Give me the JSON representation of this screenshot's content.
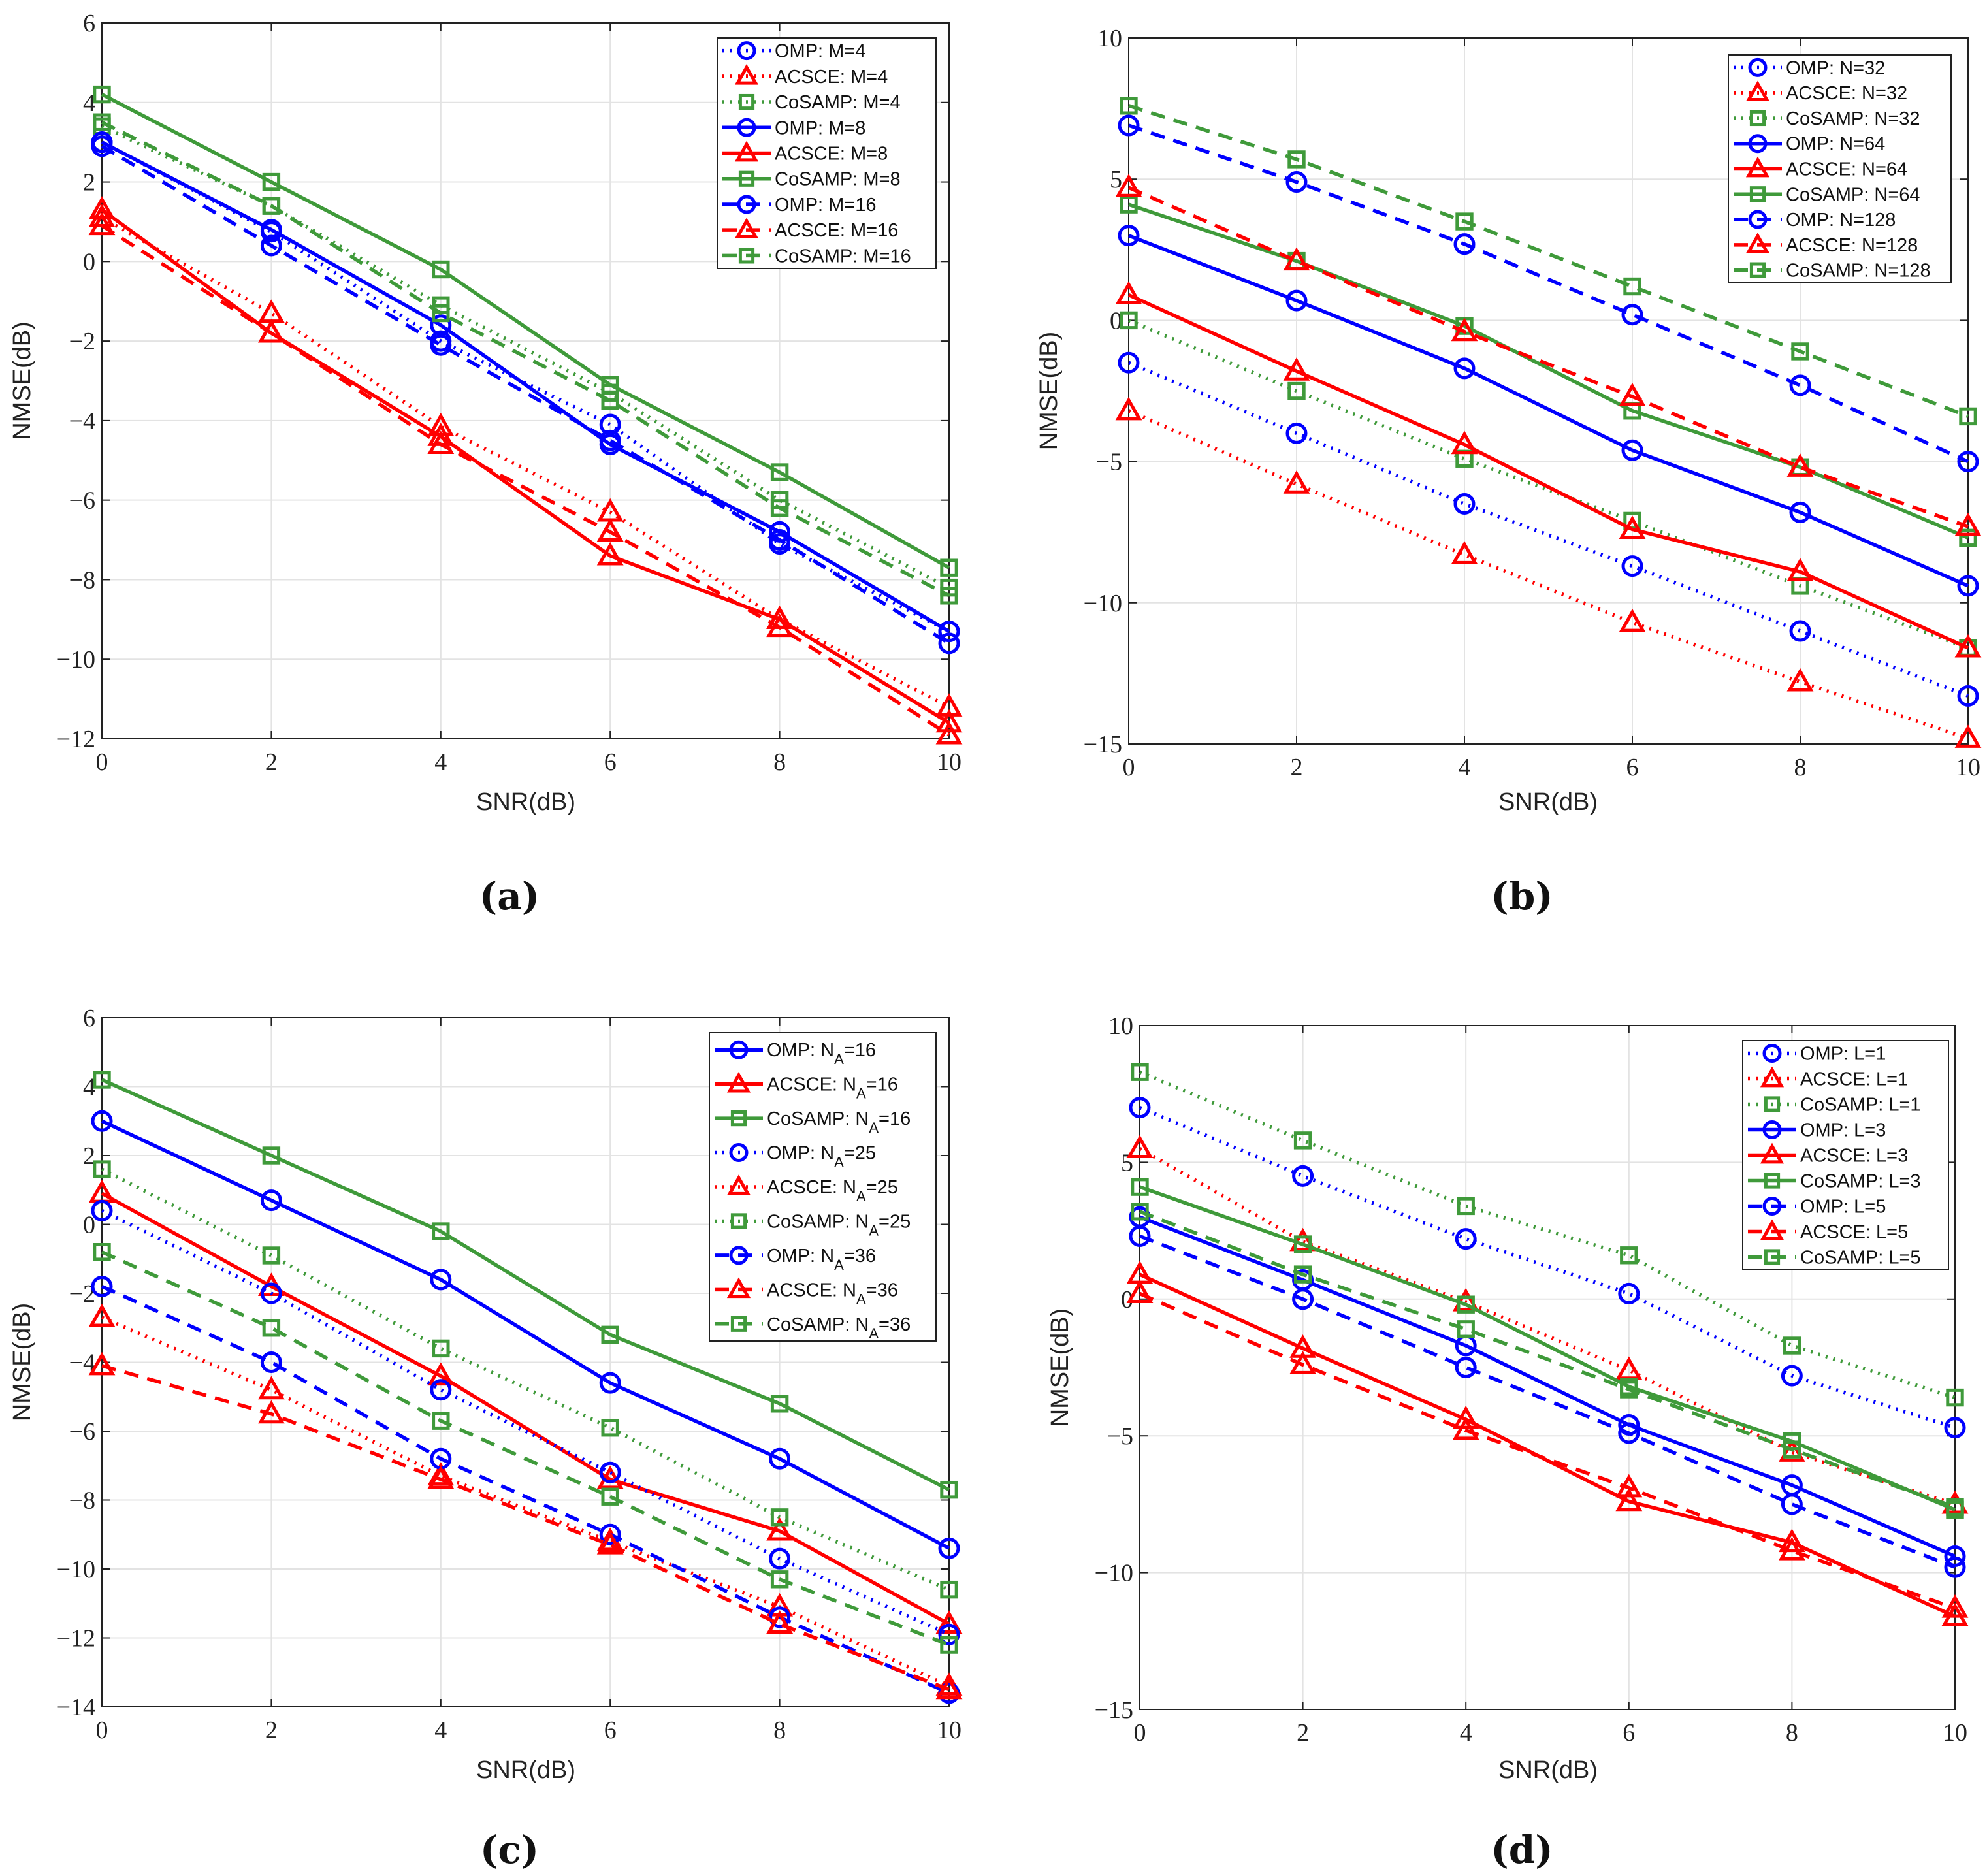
{
  "colors": {
    "OMP": "#0000ff",
    "ACSCE": "#ff0000",
    "CoSAMP": "#3f9a3a",
    "grid": "#e3e3e3"
  },
  "chart_data": [
    {
      "type": "line",
      "caption": "(a)",
      "xlabel": "SNR(dB)",
      "ylabel": "NMSE(dB)",
      "x": [
        0,
        2,
        4,
        6,
        8,
        10
      ],
      "xlim": [
        0,
        10
      ],
      "ylim": [
        -12,
        6
      ],
      "xticks": [
        0,
        2,
        4,
        6,
        8,
        10
      ],
      "yticks": [
        -12,
        -10,
        -8,
        -6,
        -4,
        -2,
        0,
        2,
        4,
        6
      ],
      "grid": true,
      "legend": "top-right",
      "series": [
        {
          "name": "OMP: M=4",
          "algo": "OMP",
          "style": "dotted",
          "values": [
            3.0,
            0.75,
            -2.0,
            -4.1,
            -7.1,
            -9.3
          ]
        },
        {
          "name": "ACSCE: M=4",
          "algo": "ACSCE",
          "style": "dotted",
          "values": [
            1.1,
            -1.3,
            -4.15,
            -6.3,
            -9.0,
            -11.2
          ]
        },
        {
          "name": "CoSAMP: M=4",
          "algo": "CoSAMP",
          "style": "dotted",
          "values": [
            3.4,
            1.4,
            -1.1,
            -3.3,
            -6.0,
            -8.2
          ]
        },
        {
          "name": "OMP: M=8",
          "algo": "OMP",
          "style": "solid",
          "values": [
            3.0,
            0.8,
            -1.6,
            -4.6,
            -6.8,
            -9.3
          ]
        },
        {
          "name": "ACSCE: M=8",
          "algo": "ACSCE",
          "style": "solid",
          "values": [
            1.3,
            -1.8,
            -4.4,
            -7.4,
            -9.0,
            -11.6
          ]
        },
        {
          "name": "CoSAMP: M=8",
          "algo": "CoSAMP",
          "style": "solid",
          "values": [
            4.2,
            2.0,
            -0.2,
            -3.1,
            -5.3,
            -7.7
          ]
        },
        {
          "name": "OMP: M=16",
          "algo": "OMP",
          "style": "dashed",
          "values": [
            2.9,
            0.4,
            -2.1,
            -4.5,
            -7.0,
            -9.6
          ]
        },
        {
          "name": "ACSCE: M=16",
          "algo": "ACSCE",
          "style": "dashed",
          "values": [
            0.9,
            -1.8,
            -4.6,
            -6.8,
            -9.2,
            -11.9
          ]
        },
        {
          "name": "CoSAMP: M=16",
          "algo": "CoSAMP",
          "style": "dashed",
          "values": [
            3.5,
            1.4,
            -1.3,
            -3.5,
            -6.2,
            -8.4
          ]
        }
      ]
    },
    {
      "type": "line",
      "caption": "(b)",
      "xlabel": "SNR(dB)",
      "ylabel": "NMSE(dB)",
      "x": [
        0,
        2,
        4,
        6,
        8,
        10
      ],
      "xlim": [
        0,
        10
      ],
      "ylim": [
        -15,
        10
      ],
      "xticks": [
        0,
        2,
        4,
        6,
        8,
        10
      ],
      "yticks": [
        -15,
        -10,
        -5,
        0,
        5,
        10
      ],
      "grid": true,
      "legend": "top-right",
      "series": [
        {
          "name": "OMP: N=32",
          "algo": "OMP",
          "style": "dotted",
          "values": [
            -1.5,
            -4.0,
            -6.5,
            -8.7,
            -11.0,
            -13.3
          ]
        },
        {
          "name": "ACSCE: N=32",
          "algo": "ACSCE",
          "style": "dotted",
          "values": [
            -3.2,
            -5.8,
            -8.3,
            -10.7,
            -12.8,
            -14.8
          ]
        },
        {
          "name": "CoSAMP: N=32",
          "algo": "CoSAMP",
          "style": "dotted",
          "values": [
            0.0,
            -2.5,
            -4.9,
            -7.1,
            -9.4,
            -11.6
          ]
        },
        {
          "name": "OMP: N=64",
          "algo": "OMP",
          "style": "solid",
          "values": [
            3.0,
            0.7,
            -1.7,
            -4.6,
            -6.8,
            -9.4
          ]
        },
        {
          "name": "ACSCE: N=64",
          "algo": "ACSCE",
          "style": "solid",
          "values": [
            0.9,
            -1.8,
            -4.4,
            -7.4,
            -8.9,
            -11.6
          ]
        },
        {
          "name": "CoSAMP: N=64",
          "algo": "CoSAMP",
          "style": "solid",
          "values": [
            4.1,
            2.1,
            -0.2,
            -3.2,
            -5.2,
            -7.7
          ]
        },
        {
          "name": "OMP: N=128",
          "algo": "OMP",
          "style": "dashed",
          "values": [
            6.9,
            4.9,
            2.7,
            0.2,
            -2.3,
            -5.0
          ]
        },
        {
          "name": "ACSCE: N=128",
          "algo": "ACSCE",
          "style": "dashed",
          "values": [
            4.7,
            2.1,
            -0.4,
            -2.7,
            -5.2,
            -7.3
          ]
        },
        {
          "name": "CoSAMP: N=128",
          "algo": "CoSAMP",
          "style": "dashed",
          "values": [
            7.6,
            5.7,
            3.5,
            1.2,
            -1.1,
            -3.4
          ]
        }
      ]
    },
    {
      "type": "line",
      "caption": "(c)",
      "xlabel": "SNR(dB)",
      "ylabel": "NMSE(dB)",
      "x": [
        0,
        2,
        4,
        6,
        8,
        10
      ],
      "xlim": [
        0,
        10
      ],
      "ylim": [
        -14,
        6
      ],
      "xticks": [
        0,
        2,
        4,
        6,
        8,
        10
      ],
      "yticks": [
        -14,
        -12,
        -10,
        -8,
        -6,
        -4,
        -2,
        0,
        2,
        4,
        6
      ],
      "grid": true,
      "legend": "top-right",
      "series": [
        {
          "name": "OMP: N_A=16",
          "algo": "OMP",
          "style": "solid",
          "values": [
            3.0,
            0.7,
            -1.6,
            -4.6,
            -6.8,
            -9.4
          ]
        },
        {
          "name": "ACSCE: N_A=16",
          "algo": "ACSCE",
          "style": "solid",
          "values": [
            0.9,
            -1.8,
            -4.4,
            -7.4,
            -8.9,
            -11.6
          ]
        },
        {
          "name": "CoSAMP: N_A=16",
          "algo": "CoSAMP",
          "style": "solid",
          "values": [
            4.2,
            2.0,
            -0.2,
            -3.2,
            -5.2,
            -7.7
          ]
        },
        {
          "name": "OMP: N_A=25",
          "algo": "OMP",
          "style": "dotted",
          "values": [
            0.4,
            -2.0,
            -4.8,
            -7.2,
            -9.7,
            -11.9
          ]
        },
        {
          "name": "ACSCE: N_A=25",
          "algo": "ACSCE",
          "style": "dotted",
          "values": [
            -2.7,
            -4.8,
            -7.3,
            -9.2,
            -11.1,
            -13.4
          ]
        },
        {
          "name": "CoSAMP: N_A=25",
          "algo": "CoSAMP",
          "style": "dotted",
          "values": [
            1.6,
            -0.9,
            -3.6,
            -5.9,
            -8.5,
            -10.6
          ]
        },
        {
          "name": "OMP: N_A=36",
          "algo": "OMP",
          "style": "dashed",
          "values": [
            -1.8,
            -4.0,
            -6.8,
            -9.0,
            -11.4,
            -13.6
          ]
        },
        {
          "name": "ACSCE: N_A=36",
          "algo": "ACSCE",
          "style": "dashed",
          "values": [
            -4.1,
            -5.5,
            -7.4,
            -9.3,
            -11.6,
            -13.5
          ]
        },
        {
          "name": "CoSAMP: N_A=36",
          "algo": "CoSAMP",
          "style": "dashed",
          "values": [
            -0.8,
            -3.0,
            -5.7,
            -7.9,
            -10.3,
            -12.2
          ]
        }
      ]
    },
    {
      "type": "line",
      "caption": "(d)",
      "xlabel": "SNR(dB)",
      "ylabel": "NMSE(dB)",
      "x": [
        0,
        2,
        4,
        6,
        8,
        10
      ],
      "xlim": [
        0,
        10
      ],
      "ylim": [
        -15,
        10
      ],
      "xticks": [
        0,
        2,
        4,
        6,
        8,
        10
      ],
      "yticks": [
        -15,
        -10,
        -5,
        0,
        5,
        10
      ],
      "grid": true,
      "legend": "top-right",
      "series": [
        {
          "name": "OMP: L=1",
          "algo": "OMP",
          "style": "dotted",
          "values": [
            7.0,
            4.5,
            2.2,
            0.2,
            -2.8,
            -4.7
          ]
        },
        {
          "name": "ACSCE: L=1",
          "algo": "ACSCE",
          "style": "dotted",
          "values": [
            5.5,
            2.1,
            -0.1,
            -2.6,
            -5.6,
            -7.5
          ]
        },
        {
          "name": "CoSAMP: L=1",
          "algo": "CoSAMP",
          "style": "dotted",
          "values": [
            8.3,
            5.8,
            3.4,
            1.6,
            -1.7,
            -3.6
          ]
        },
        {
          "name": "OMP: L=3",
          "algo": "OMP",
          "style": "solid",
          "values": [
            3.0,
            0.7,
            -1.7,
            -4.6,
            -6.8,
            -9.4
          ]
        },
        {
          "name": "ACSCE: L=3",
          "algo": "ACSCE",
          "style": "solid",
          "values": [
            0.9,
            -1.8,
            -4.4,
            -7.4,
            -8.9,
            -11.6
          ]
        },
        {
          "name": "CoSAMP: L=3",
          "algo": "CoSAMP",
          "style": "solid",
          "values": [
            4.1,
            2.0,
            -0.2,
            -3.2,
            -5.2,
            -7.7
          ]
        },
        {
          "name": "OMP: L=5",
          "algo": "OMP",
          "style": "dashed",
          "values": [
            2.3,
            0.0,
            -2.5,
            -4.9,
            -7.5,
            -9.8
          ]
        },
        {
          "name": "ACSCE: L=5",
          "algo": "ACSCE",
          "style": "dashed",
          "values": [
            0.2,
            -2.4,
            -4.8,
            -6.9,
            -9.2,
            -11.3
          ]
        },
        {
          "name": "CoSAMP: L=5",
          "algo": "CoSAMP",
          "style": "dashed",
          "values": [
            3.2,
            0.9,
            -1.1,
            -3.3,
            -5.5,
            -7.6
          ]
        }
      ]
    }
  ]
}
